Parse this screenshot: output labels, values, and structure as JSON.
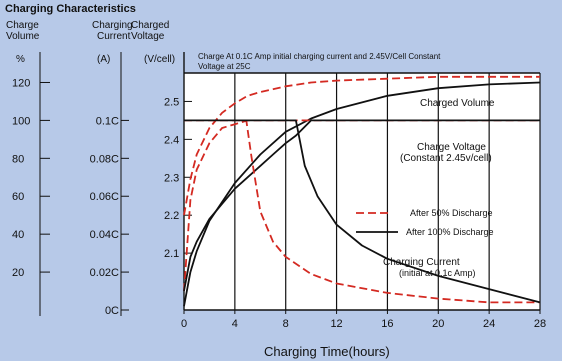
{
  "chart_data": {
    "type": "line",
    "title": "Charging Characteristics",
    "note_lines": [
      "Charge At 0.1C Amp initial charging current  and 2.45V/Cell Constant",
      "Voltage  at 25C"
    ],
    "xlabel": "Charging Time(hours)",
    "xlim": [
      0,
      28
    ],
    "x_ticks": [
      "0",
      "4",
      "8",
      "12",
      "16",
      "20",
      "24",
      "28"
    ],
    "axes": {
      "volume": {
        "header": [
          "Charge",
          "Volume"
        ],
        "unit": "%",
        "ylim": [
          0,
          125
        ],
        "ticks": [
          "120",
          "100",
          "80",
          "60",
          "40",
          "20"
        ]
      },
      "current": {
        "header": [
          "Charging",
          "Current"
        ],
        "unit": "(A)",
        "ylim": [
          0,
          0.125
        ],
        "ticks": [
          "0.1C",
          "0.08C",
          "0.06C",
          "0.04C",
          "0.02C",
          "0C"
        ]
      },
      "voltage": {
        "header": [
          "Charged",
          "Voltage"
        ],
        "unit": "(V/cell)",
        "ylim": [
          1.95,
          2.575
        ],
        "ticks": [
          "2.5",
          "2.4",
          "2.3",
          "2.2",
          "2.1"
        ]
      }
    },
    "curve_labels": {
      "charged_volume": "Charged Volume",
      "charge_voltage": [
        "Charge Voltage",
        "(Constant 2.45v/cell)"
      ],
      "charging_current": [
        "Charging Current",
        "(initial at 0.1c Amp)"
      ]
    },
    "legend": {
      "position": "right",
      "entries": [
        {
          "label": "After 50% Discharge",
          "style": "dashed",
          "color": "#d42a22"
        },
        {
          "label": "After 100% Discharge",
          "style": "solid",
          "color": "#111111"
        }
      ]
    },
    "series": [
      {
        "name": "After 50% Discharge",
        "axis": "volume",
        "x": [
          0,
          0.5,
          1,
          2,
          3,
          4,
          5,
          6,
          8,
          10,
          12,
          16,
          20,
          24,
          28
        ],
        "y": [
          50,
          69,
          82,
          96,
          104,
          109,
          113,
          115,
          118,
          120,
          121,
          122,
          123,
          123,
          123
        ]
      },
      {
        "name": "After 100% Discharge",
        "axis": "volume",
        "x": [
          0,
          0.5,
          1,
          2,
          4,
          6,
          8,
          10,
          12,
          16,
          20,
          24,
          28
        ],
        "y": [
          2,
          20,
          31,
          47,
          67,
          82,
          94,
          101,
          106,
          113,
          117,
          119,
          120
        ]
      },
      {
        "name": "After 50% Discharge",
        "axis": "voltage",
        "x": [
          0,
          0.5,
          1,
          2,
          3,
          4,
          5,
          6,
          8,
          12,
          16,
          20,
          24,
          28
        ],
        "y": [
          2.0,
          2.24,
          2.32,
          2.39,
          2.43,
          2.44,
          2.45,
          2.45,
          2.45,
          2.45,
          2.45,
          2.45,
          2.45,
          2.45
        ]
      },
      {
        "name": "After 100% Discharge",
        "axis": "voltage",
        "x": [
          0,
          0.5,
          1,
          2,
          3,
          4,
          5,
          6,
          7,
          8,
          8.8,
          10,
          12,
          16,
          20,
          24,
          28
        ],
        "y": [
          2.0,
          2.09,
          2.13,
          2.19,
          2.23,
          2.27,
          2.3,
          2.33,
          2.36,
          2.39,
          2.41,
          2.45,
          2.45,
          2.45,
          2.45,
          2.45,
          2.45
        ]
      },
      {
        "name": "After 50% Discharge",
        "axis": "current",
        "x": [
          0,
          4.9,
          5.3,
          6,
          7,
          8,
          10,
          12,
          16,
          20,
          24,
          28
        ],
        "y": [
          0.1,
          0.1,
          0.081,
          0.052,
          0.036,
          0.028,
          0.019,
          0.014,
          0.009,
          0.006,
          0.004,
          0.004
        ]
      },
      {
        "name": "After 100% Discharge",
        "axis": "current",
        "x": [
          0,
          8.8,
          9.5,
          10.5,
          12,
          14,
          16,
          20,
          24,
          28
        ],
        "y": [
          0.1,
          0.1,
          0.076,
          0.06,
          0.045,
          0.034,
          0.027,
          0.018,
          0.011,
          0.004
        ]
      }
    ]
  }
}
